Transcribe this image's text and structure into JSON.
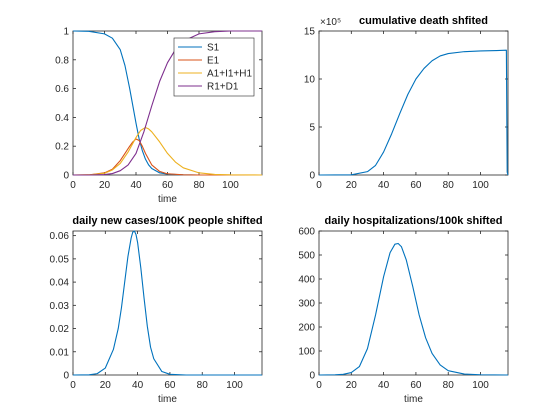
{
  "chart_data": [
    {
      "type": "line",
      "title": "",
      "xlabel": "time",
      "ylabel": "",
      "xlim": [
        0,
        120
      ],
      "ylim": [
        0,
        1
      ],
      "xticks": [
        0,
        20,
        40,
        60,
        80,
        100
      ],
      "yticks": [
        0,
        0.2,
        0.4,
        0.6,
        0.8,
        1
      ],
      "ytick_labels": [
        "0",
        "0.2",
        "0.4",
        "0.6",
        "0.8",
        "1"
      ],
      "exponent_label": "",
      "grid": false,
      "legend_position": "top-right",
      "series": [
        {
          "name": "S1",
          "color": "#0072BD",
          "x": [
            0,
            10,
            20,
            25,
            30,
            33,
            36,
            38,
            40,
            42,
            44,
            46,
            48,
            50,
            55,
            60,
            70,
            80,
            120
          ],
          "y": [
            1,
            0.998,
            0.98,
            0.95,
            0.87,
            0.76,
            0.6,
            0.48,
            0.36,
            0.25,
            0.17,
            0.11,
            0.07,
            0.045,
            0.015,
            0.006,
            0.001,
            0,
            0
          ]
        },
        {
          "name": "E1",
          "color": "#D95319",
          "x": [
            0,
            10,
            20,
            25,
            30,
            33,
            36,
            38,
            40,
            42,
            44,
            46,
            48,
            50,
            55,
            60,
            70,
            80,
            120
          ],
          "y": [
            0,
            0.001,
            0.015,
            0.04,
            0.1,
            0.15,
            0.2,
            0.23,
            0.25,
            0.24,
            0.2,
            0.15,
            0.11,
            0.07,
            0.025,
            0.008,
            0.001,
            0,
            0
          ]
        },
        {
          "name": "A1+I1+H1",
          "color": "#EDB120",
          "x": [
            0,
            10,
            20,
            25,
            30,
            35,
            38,
            40,
            43,
            46,
            48,
            50,
            55,
            60,
            65,
            70,
            80,
            90,
            100,
            120
          ],
          "y": [
            0,
            0.001,
            0.012,
            0.035,
            0.08,
            0.16,
            0.22,
            0.26,
            0.31,
            0.33,
            0.32,
            0.3,
            0.23,
            0.15,
            0.09,
            0.05,
            0.015,
            0.004,
            0.001,
            0
          ]
        },
        {
          "name": "R1+D1",
          "color": "#7E2F8E",
          "x": [
            0,
            10,
            20,
            25,
            30,
            35,
            40,
            45,
            50,
            55,
            60,
            65,
            70,
            80,
            90,
            100,
            110,
            120
          ],
          "y": [
            0,
            0,
            0.003,
            0.01,
            0.03,
            0.07,
            0.15,
            0.3,
            0.48,
            0.65,
            0.78,
            0.87,
            0.93,
            0.98,
            0.995,
            1,
            1,
            1
          ]
        }
      ]
    },
    {
      "type": "line",
      "title": "cumulative death shfited",
      "xlabel": "",
      "ylabel": "",
      "xlim": [
        0,
        117
      ],
      "ylim": [
        0,
        15
      ],
      "xticks": [
        0,
        20,
        40,
        60,
        80,
        100
      ],
      "yticks": [
        0,
        5,
        10,
        15
      ],
      "ytick_labels": [
        "0",
        "5",
        "10",
        "15"
      ],
      "exponent_label": "×10⁵",
      "grid": false,
      "legend_position": "",
      "series": [
        {
          "name": "",
          "color": "#0072BD",
          "x": [
            0,
            20,
            30,
            35,
            40,
            45,
            50,
            55,
            60,
            65,
            70,
            75,
            80,
            90,
            100,
            110,
            116,
            116.5,
            117
          ],
          "y": [
            0,
            0.02,
            0.35,
            1.0,
            2.4,
            4.3,
            6.4,
            8.4,
            10.0,
            11.1,
            11.9,
            12.4,
            12.65,
            12.85,
            12.92,
            12.96,
            13.0,
            0.3,
            0
          ]
        }
      ]
    },
    {
      "type": "line",
      "title": "daily new cases/100K people shifted",
      "xlabel": "time",
      "ylabel": "",
      "xlim": [
        0,
        117
      ],
      "ylim": [
        0,
        0.062
      ],
      "xticks": [
        0,
        20,
        40,
        60,
        80,
        100
      ],
      "yticks": [
        0,
        0.01,
        0.02,
        0.03,
        0.04,
        0.05,
        0.06
      ],
      "ytick_labels": [
        "0",
        "0.01",
        "0.02",
        "0.03",
        "0.04",
        "0.05",
        "0.06"
      ],
      "exponent_label": "",
      "grid": false,
      "legend_position": "",
      "series": [
        {
          "name": "",
          "color": "#0072BD",
          "x": [
            0,
            10,
            15,
            20,
            25,
            28,
            30,
            32,
            34,
            36,
            37,
            38,
            39,
            40,
            42,
            44,
            46,
            48,
            50,
            55,
            60,
            70,
            117
          ],
          "y": [
            0,
            0.0001,
            0.0006,
            0.003,
            0.011,
            0.02,
            0.029,
            0.04,
            0.051,
            0.059,
            0.0615,
            0.062,
            0.0605,
            0.057,
            0.046,
            0.033,
            0.021,
            0.012,
            0.007,
            0.0015,
            0.0003,
            0,
            0
          ]
        }
      ]
    },
    {
      "type": "line",
      "title": "daily hospitalizations/100k shifted",
      "xlabel": "time",
      "ylabel": "",
      "xlim": [
        0,
        117
      ],
      "ylim": [
        0,
        600
      ],
      "xticks": [
        0,
        20,
        40,
        60,
        80,
        100
      ],
      "yticks": [
        0,
        100,
        200,
        300,
        400,
        500,
        600
      ],
      "ytick_labels": [
        "0",
        "100",
        "200",
        "300",
        "400",
        "500",
        "600"
      ],
      "exponent_label": "",
      "grid": false,
      "legend_position": "",
      "series": [
        {
          "name": "",
          "color": "#0072BD",
          "x": [
            0,
            10,
            15,
            20,
            25,
            30,
            35,
            40,
            44,
            47,
            49,
            51,
            54,
            58,
            62,
            66,
            70,
            75,
            80,
            90,
            100,
            117
          ],
          "y": [
            0,
            1,
            3,
            10,
            35,
            110,
            250,
            410,
            510,
            545,
            548,
            535,
            480,
            370,
            250,
            155,
            90,
            42,
            18,
            4,
            1,
            0
          ]
        }
      ]
    }
  ]
}
